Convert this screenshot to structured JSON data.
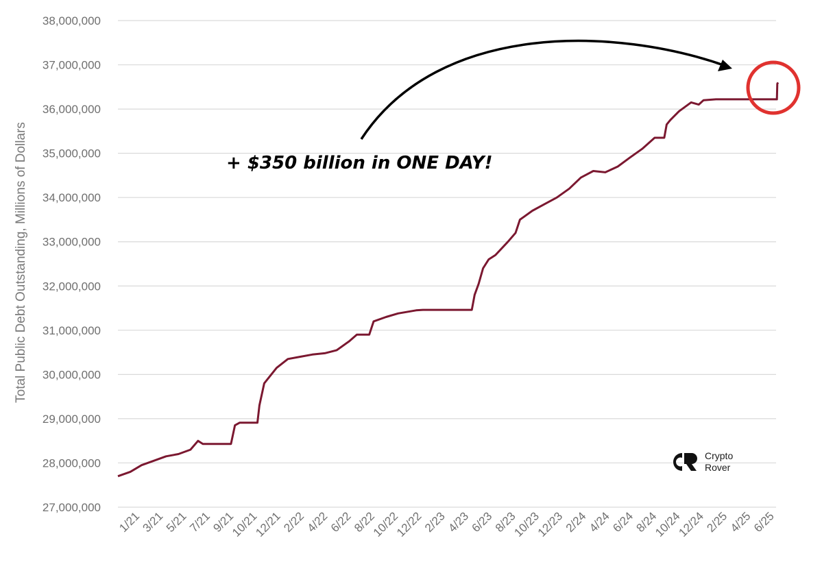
{
  "colors": {
    "series": "#7b1830",
    "grid": "#d9d9d9",
    "circle": "#e0322f",
    "arrow": "#000000",
    "tick_text": "#6f6f6f"
  },
  "watermark": {
    "line1": "Crypto",
    "line2": "Rover",
    "icon": "crypto-rover-logo-icon"
  },
  "annotation": {
    "text": "+ $350 billion in ONE DAY!"
  },
  "chart_data": {
    "type": "line",
    "title": "",
    "xlabel": "",
    "ylabel": "Total Public Debt Outstanding, Millions of Dollars",
    "ylim": [
      27000000,
      38000000
    ],
    "yticks": [
      27000000,
      28000000,
      29000000,
      30000000,
      31000000,
      32000000,
      33000000,
      34000000,
      35000000,
      36000000,
      37000000,
      38000000
    ],
    "ytick_labels": [
      "27,000,000",
      "28,000,000",
      "29,000,000",
      "30,000,000",
      "31,000,000",
      "32,000,000",
      "33,000,000",
      "34,000,000",
      "35,000,000",
      "36,000,000",
      "37,000,000",
      "38,000,000"
    ],
    "xlim": [
      "2021-01",
      "2025-07"
    ],
    "xtick_labels": [
      "1/21",
      "3/21",
      "5/21",
      "7/21",
      "9/21",
      "10/21",
      "12/21",
      "2/22",
      "4/22",
      "6/22",
      "8/22",
      "10/22",
      "12/22",
      "2/23",
      "4/23",
      "6/23",
      "8/23",
      "10/23",
      "12/23",
      "2/24",
      "4/24",
      "6/24",
      "8/24",
      "10/24",
      "12/24",
      "2/25",
      "4/25",
      "6/25"
    ],
    "grid": true,
    "legend": "none",
    "series": [
      {
        "x": [
          "2021-01-01",
          "2021-02-01",
          "2021-03-01",
          "2021-04-01",
          "2021-05-01",
          "2021-06-01",
          "2021-07-01",
          "2021-07-20",
          "2021-08-01",
          "2021-09-01",
          "2021-10-01",
          "2021-10-10",
          "2021-10-20",
          "2021-11-01",
          "2021-12-01",
          "2021-12-15",
          "2021-12-20",
          "2022-01-01",
          "2022-02-01",
          "2022-03-01",
          "2022-04-01",
          "2022-05-01",
          "2022-06-01",
          "2022-07-01",
          "2022-08-01",
          "2022-08-20",
          "2022-09-01",
          "2022-09-20",
          "2022-10-01",
          "2022-11-01",
          "2022-12-01",
          "2023-01-15",
          "2023-02-01",
          "2023-03-01",
          "2023-04-01",
          "2023-05-01",
          "2023-06-03",
          "2023-06-10",
          "2023-06-20",
          "2023-07-01",
          "2023-07-15",
          "2023-08-01",
          "2023-09-01",
          "2023-09-20",
          "2023-10-01",
          "2023-11-01",
          "2023-12-01",
          "2024-01-01",
          "2024-02-01",
          "2024-03-01",
          "2024-04-01",
          "2024-05-01",
          "2024-06-01",
          "2024-07-01",
          "2024-08-01",
          "2024-09-01",
          "2024-09-25",
          "2024-10-01",
          "2024-10-10",
          "2024-11-01",
          "2024-12-01",
          "2024-12-20",
          "2025-01-01",
          "2025-02-01",
          "2025-03-01",
          "2025-04-01",
          "2025-05-01",
          "2025-06-01",
          "2025-07-03",
          "2025-07-04",
          "2025-07-06"
        ],
        "values": [
          27700000,
          27800000,
          27950000,
          28050000,
          28150000,
          28200000,
          28300000,
          28500000,
          28430000,
          28430000,
          28430000,
          28430000,
          28850000,
          28910000,
          28910000,
          28910000,
          29300000,
          29800000,
          30150000,
          30350000,
          30400000,
          30450000,
          30480000,
          30550000,
          30750000,
          30900000,
          30900000,
          30900000,
          31200000,
          31300000,
          31380000,
          31450000,
          31460000,
          31460000,
          31460000,
          31460000,
          31460000,
          31800000,
          32050000,
          32400000,
          32600000,
          32700000,
          33000000,
          33200000,
          33500000,
          33700000,
          33850000,
          34000000,
          34200000,
          34450000,
          34600000,
          34570000,
          34700000,
          34900000,
          35100000,
          35350000,
          35350000,
          35650000,
          35750000,
          35950000,
          36150000,
          36100000,
          36200000,
          36220000,
          36220000,
          36220000,
          36220000,
          36220000,
          36220000,
          36570000,
          36600000
        ]
      }
    ]
  }
}
